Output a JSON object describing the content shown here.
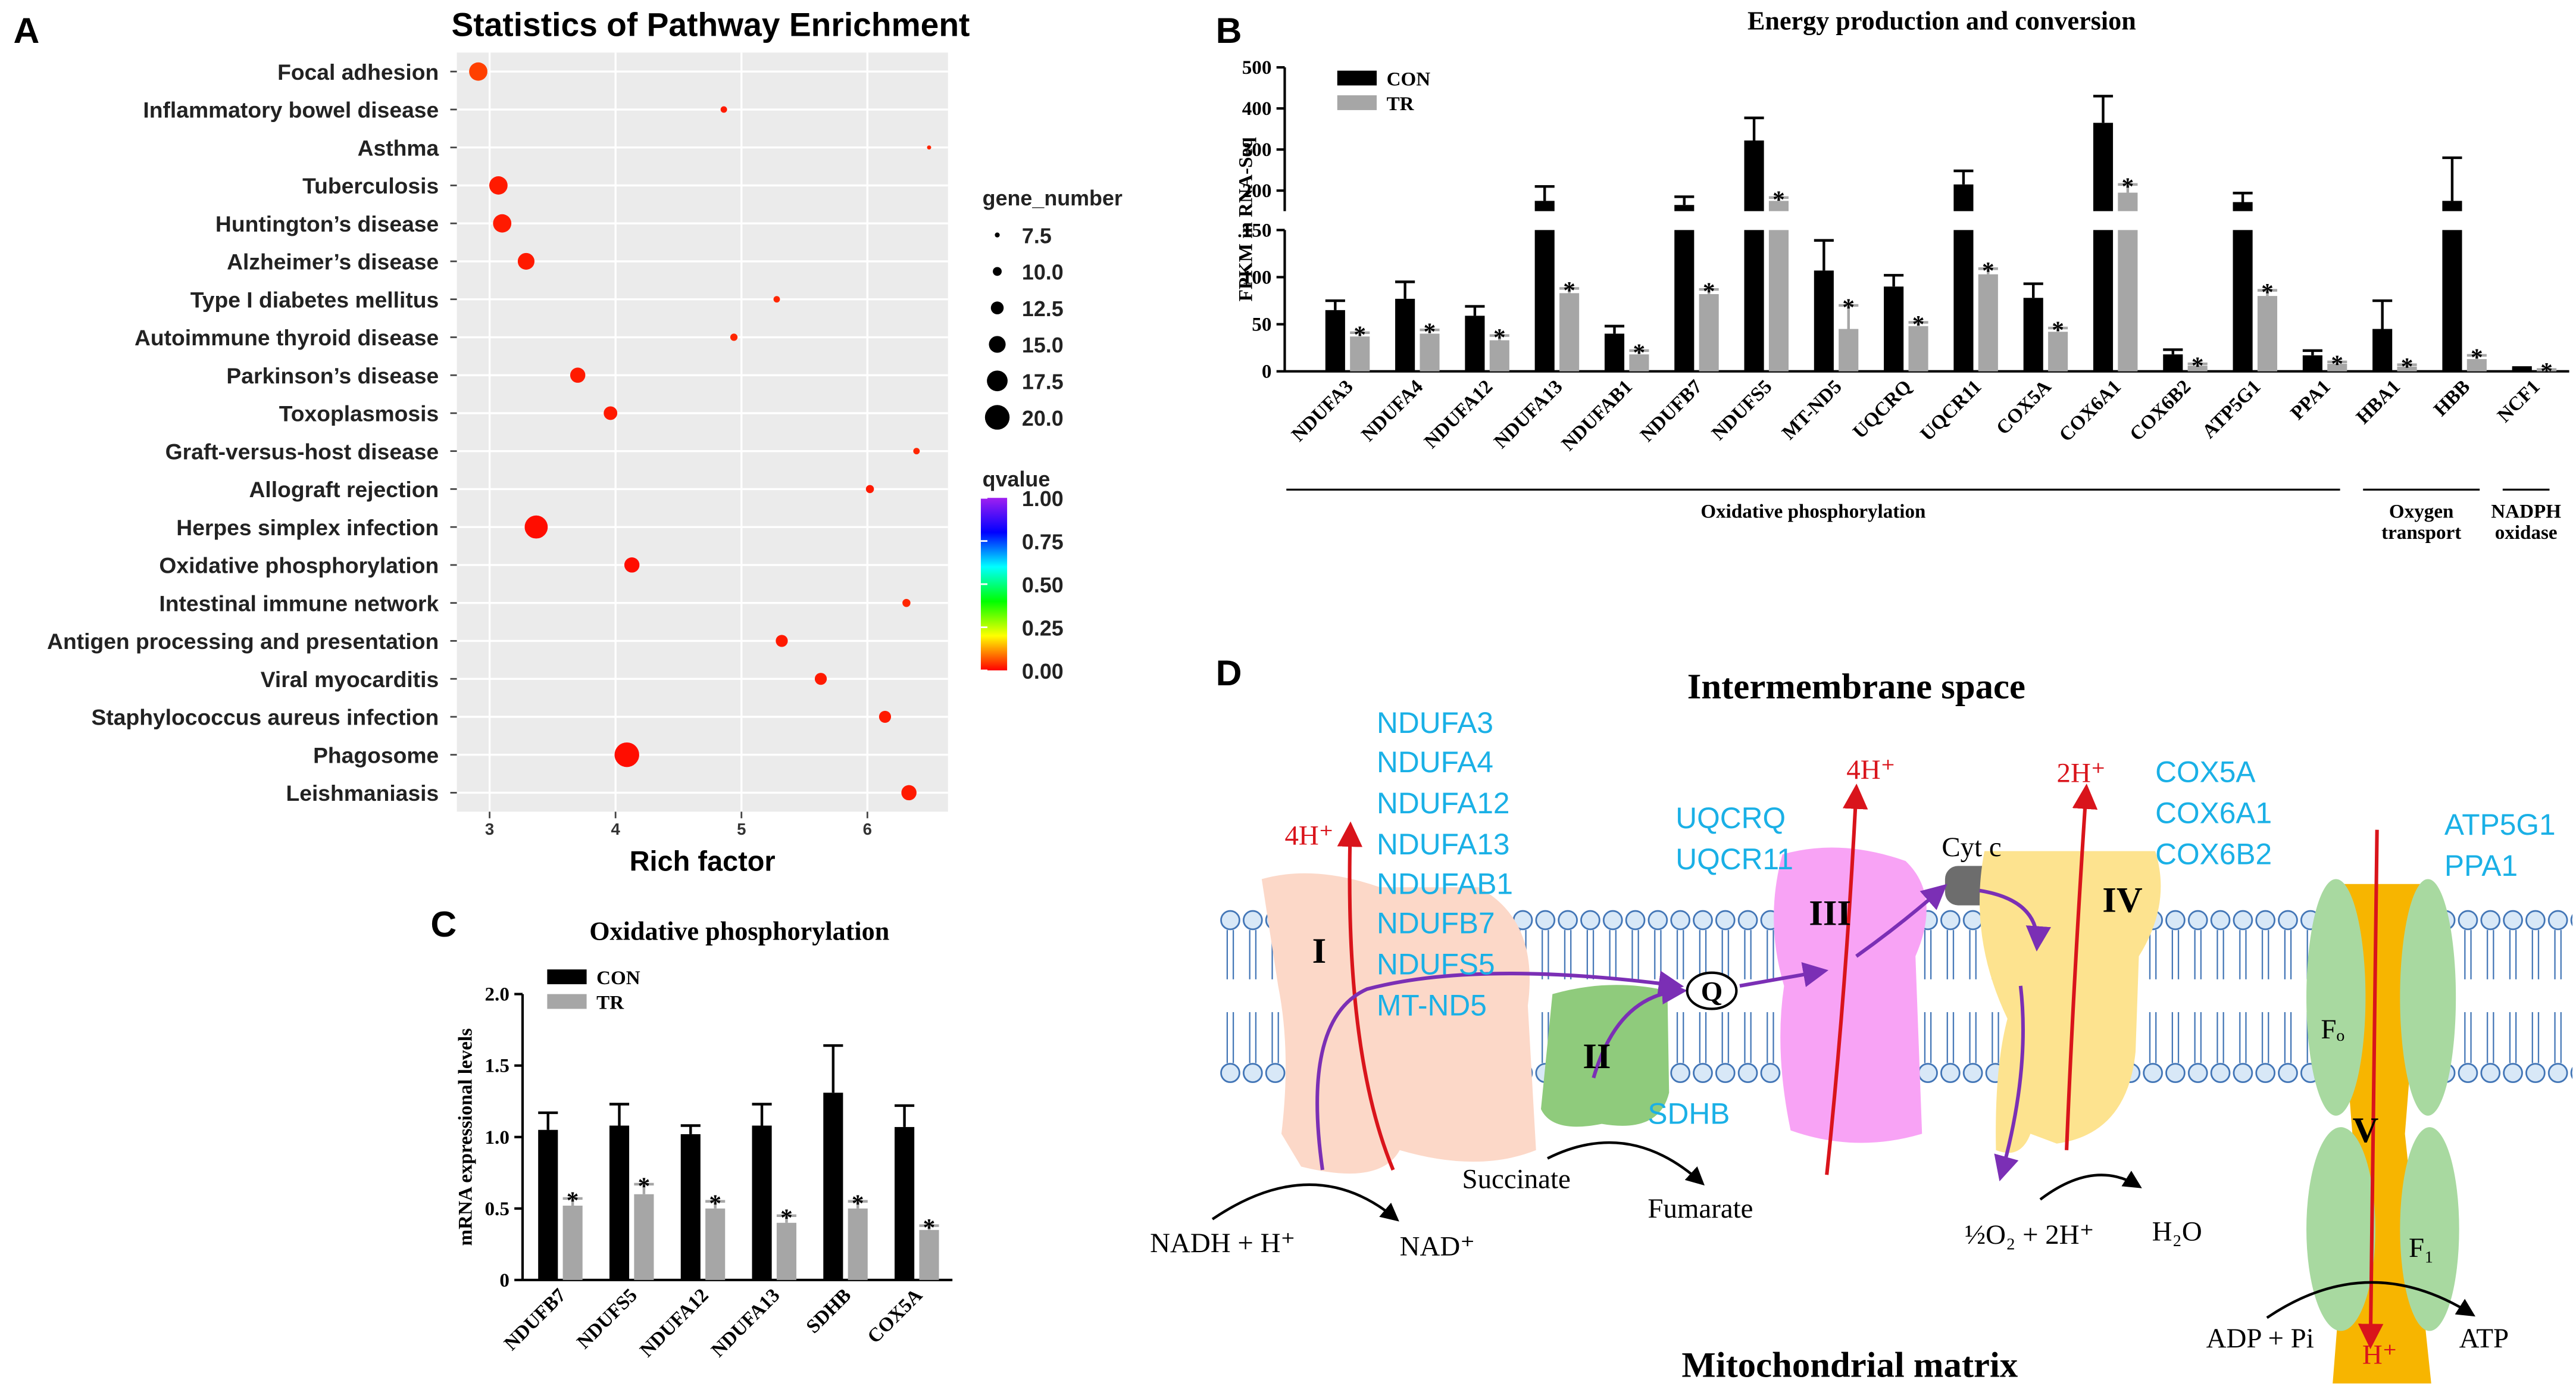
{
  "chart_data": [
    {
      "label": "A",
      "type": "scatter",
      "title": "Statistics of Pathway Enrichment",
      "xlabel": "Rich factor",
      "categories": [
        "Focal adhesion",
        "Inflammatory bowel disease",
        "Asthma",
        "Tuberculosis",
        "Huntington’s disease",
        "Alzheimer’s disease",
        "Type I diabetes mellitus",
        "Autoimmune thyroid disease",
        "Parkinson’s disease",
        "Toxoplasmosis",
        "Graft-versus-host disease",
        "Allograft rejection",
        "Herpes simplex infection",
        "Oxidative phosphorylation",
        "Intestinal immune network",
        "Antigen processing and presentation",
        "Viral myocarditis",
        "Staphylococcus aureus infection",
        "Phagosome",
        "Leishmaniasis"
      ],
      "x": [
        2.91,
        4.86,
        6.49,
        3.07,
        3.1,
        3.29,
        5.28,
        4.94,
        3.7,
        3.96,
        6.39,
        6.02,
        3.37,
        4.13,
        6.31,
        5.32,
        5.63,
        6.14,
        4.09,
        6.33
      ],
      "gene_number": [
        16,
        8.5,
        7,
        16,
        16,
        15,
        8.5,
        9,
        14,
        13,
        8.5,
        9.5,
        19,
        14,
        9.5,
        12,
        12,
        12,
        20,
        14
      ],
      "qvalue": [
        0.05,
        0.02,
        0.03,
        0.02,
        0.02,
        0.02,
        0.03,
        0.03,
        0.02,
        0.02,
        0.03,
        0.02,
        0.01,
        0.01,
        0.03,
        0.02,
        0.02,
        0.02,
        0.01,
        0.02
      ],
      "xlim": [
        2.74,
        6.64
      ],
      "xticks": [
        3,
        4,
        5,
        6
      ],
      "grid": true,
      "background": "#ebebeb",
      "size_legend": {
        "title": "gene_number",
        "values": [
          7.5,
          {
            "value": 10,
            "label": "10.0"
          },
          12.5,
          {
            "value": 15,
            "label": "15.0"
          },
          17.5,
          {
            "value": 20,
            "label": "20.0"
          }
        ]
      },
      "color_legend": {
        "title": "qvalue",
        "ticks": [
          {
            "value": 1,
            "label": "1.00"
          },
          {
            "value": 0.75,
            "label": "0.75"
          },
          {
            "value": 0.5,
            "label": "0.50"
          },
          {
            "value": 0.25,
            "label": "0.25"
          },
          {
            "value": 0,
            "label": "0.00"
          }
        ],
        "colors": [
          "#ff0000",
          "#ffff00",
          "#00ff00",
          "#00ffff",
          "#0000ff",
          "#a020f0"
        ]
      }
    },
    {
      "label": "B",
      "type": "bar",
      "title": "Energy production and conversion",
      "ylabel": "FPKM in RNA-Seq",
      "categories": [
        "NDUFA3",
        "NDUFA4",
        "NDUFA12",
        "NDUFA13",
        "NDUFAB1",
        "NDUFB7",
        "NDUFS5",
        "MT-ND5",
        "UQCRQ",
        "UQCR11",
        "COX5A",
        "COX6A1",
        "COX6B2",
        "ATP5G1",
        "PPA1",
        "HBA1",
        "HBB",
        "NCF1"
      ],
      "series": [
        {
          "name": "CON",
          "color": "#000000",
          "values": [
            65,
            77,
            59,
            175,
            40,
            165,
            322,
            107,
            90,
            215,
            78,
            365,
            18,
            172,
            17,
            45,
            175,
            3
          ],
          "errors": [
            10,
            18,
            10,
            35,
            8,
            20,
            55,
            32,
            12,
            33,
            15,
            65,
            5,
            22,
            5,
            30,
            105,
            1
          ]
        },
        {
          "name": "TR",
          "color": "#a6a6a6",
          "values": [
            37,
            40,
            33,
            83,
            18,
            82,
            175,
            45,
            48,
            103,
            42,
            195,
            6,
            80,
            8,
            5,
            13,
            1
          ],
          "errors": [
            4,
            4,
            5,
            5,
            4,
            5,
            8,
            25,
            4,
            6,
            4,
            20,
            2,
            6,
            2,
            2,
            4,
            1
          ],
          "marker_label": "*"
        }
      ],
      "ylim": [
        0,
        500
      ],
      "yticks": [
        0,
        50,
        100,
        150,
        200,
        300,
        400,
        500
      ],
      "axis_break": 150,
      "legend": "upper left",
      "groups": [
        {
          "name": [
            "Oxidative phosphorylation"
          ],
          "size": 15
        },
        {
          "name": [
            "Oxygen",
            "transport"
          ],
          "size": 2
        },
        {
          "name": [
            "NADPH",
            "oxidase"
          ],
          "size": 1
        }
      ]
    },
    {
      "label": "C",
      "type": "bar",
      "title": "Oxidative phosphorylation",
      "ylabel": "mRNA expressional levels",
      "categories": [
        "NDUFB7",
        "NDUFS5",
        "NDUFA12",
        "NDUFA13",
        "SDHB",
        "COX5A"
      ],
      "series": [
        {
          "name": "CON",
          "color": "#000000",
          "values": [
            1.05,
            1.08,
            1.02,
            1.08,
            1.31,
            1.07
          ],
          "errors": [
            0.12,
            0.15,
            0.06,
            0.15,
            0.33,
            0.15
          ]
        },
        {
          "name": "TR",
          "color": "#a6a6a6",
          "values": [
            0.52,
            0.6,
            0.5,
            0.4,
            0.5,
            0.35
          ],
          "errors": [
            0.05,
            0.07,
            0.05,
            0.05,
            0.05,
            0.03
          ],
          "marker_label": "*"
        }
      ],
      "ylim": [
        0,
        2
      ],
      "yticks": [
        0,
        0.5,
        {
          "value": 1,
          "label": "1.0"
        },
        1.5,
        {
          "value": 2,
          "label": "2.0"
        }
      ],
      "legend": "upper left"
    }
  ],
  "diagram": {
    "label": "D",
    "intermembrane": "Intermembrane space",
    "matrix": "Mitochondrial matrix",
    "complex_I": {
      "name": "I",
      "genes": [
        "NDUFA3",
        "NDUFA4",
        "NDUFA12",
        "NDUFA13",
        "NDUFAB1",
        "NDUFB7",
        "NDUFS5",
        "MT-ND5"
      ]
    },
    "complex_II": {
      "name": "II",
      "genes": [
        "SDHB"
      ]
    },
    "complex_III": {
      "name": "III",
      "genes": [
        "UQCRQ",
        "UQCR11"
      ]
    },
    "complex_IV": {
      "name": "IV",
      "genes": [
        "COX5A",
        "COX6A1",
        "COX6B2"
      ]
    },
    "complex_V": {
      "name": "V",
      "genes": [
        "ATP5G1",
        "PPA1"
      ],
      "fo": "Fₒ",
      "f1": "F₁"
    },
    "q": "Q",
    "cyt_c": "Cyt c",
    "protons": [
      "4H⁺",
      "4H⁺",
      "2H⁺",
      "H⁺"
    ],
    "metabolites": {
      "nadh": "NADH + H⁺",
      "nad": "NAD⁺",
      "succinate": "Succinate",
      "fumarate": "Fumarate",
      "oxygen": "½O₂ + 2H⁺",
      "water": "H₂O",
      "adp": "ADP + Pi",
      "atp": "ATP"
    }
  }
}
